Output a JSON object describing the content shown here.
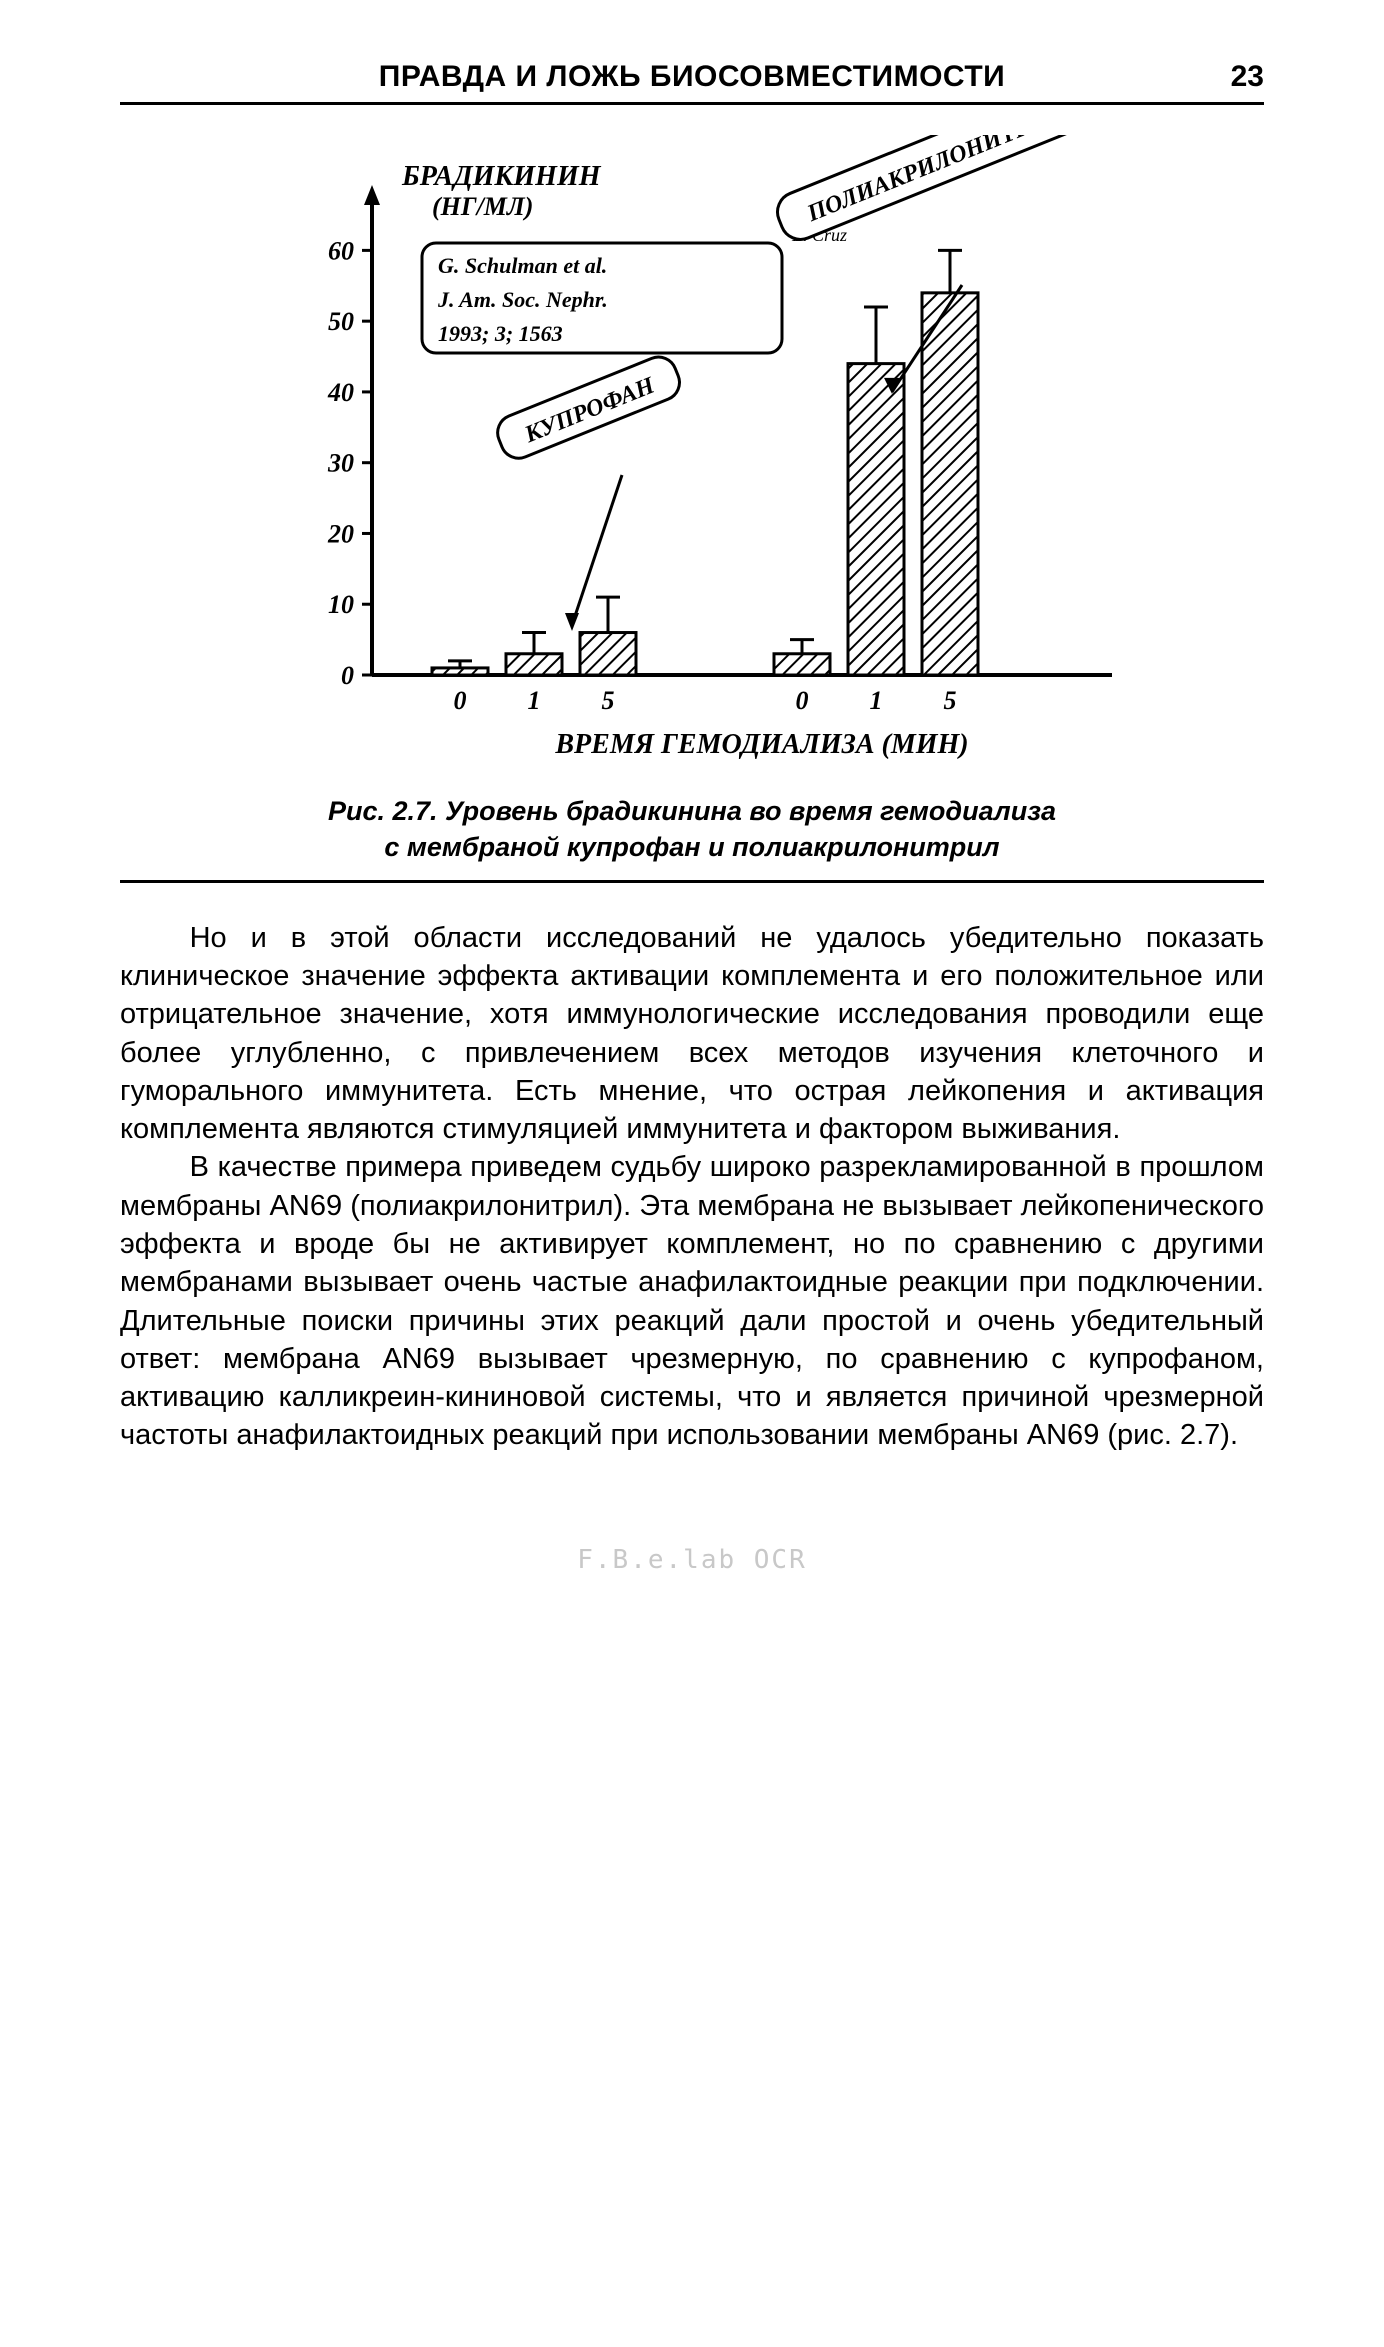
{
  "header": {
    "title": "ПРАВДА И ЛОЖЬ БИОСОВМЕСТИМОСТИ",
    "page_number": "23"
  },
  "chart": {
    "type": "bar",
    "y_axis_label": "БРАДИКИНИН (НГ/МЛ)",
    "x_axis_label": "ВРЕМЯ ГЕМОДИАЛИЗА (МИН)",
    "y_ticks": [
      0,
      10,
      20,
      30,
      40,
      50,
      60
    ],
    "x_tick_labels_group1": [
      "0",
      "1",
      "5"
    ],
    "x_tick_labels_group2": [
      "0",
      "1",
      "5"
    ],
    "group1_label": "КУПРОФАН",
    "group2_label": "ПОЛИАКРИЛОНИТРИЛ",
    "citation_lines": [
      "G. Schulman et al.",
      "J. Am. Soc. Nephr.",
      "1993; 3; 1563"
    ],
    "citation_author_small": "E. Cruz",
    "bars_group1": [
      {
        "value": 1,
        "err": 1
      },
      {
        "value": 3,
        "err": 3
      },
      {
        "value": 6,
        "err": 5
      }
    ],
    "bars_group2": [
      {
        "value": 3,
        "err": 2
      },
      {
        "value": 44,
        "err": 8
      },
      {
        "value": 54,
        "err": 6
      }
    ],
    "bar_fill": "#000000",
    "bar_hatch": true,
    "axis_color": "#000000",
    "background_color": "#ffffff",
    "line_width_axis": 4,
    "ylim": [
      0,
      65
    ],
    "y_axis_fontsize": 26,
    "x_axis_fontsize": 26,
    "label_fontsize": 28,
    "hand_font": "Comic Sans MS"
  },
  "figure_caption": {
    "line1": "Рис. 2.7. Уровень брадикинина во время гемодиализа",
    "line2": "с мембраной купрофан и полиакрилонитрил"
  },
  "paragraphs": [
    "Но и в этой области исследований не удалось убедительно показать клиническое значение эффекта активации комплемента и его положительное или отрицательное значение, хотя иммунологические исследования проводили еще более углубленно, с привлечением всех методов изучения клеточного и гуморального иммунитета. Есть мнение, что острая лейкопения и активация комплемента являются стимуляцией иммунитета и фактором выживания.",
    "В качестве примера приведем судьбу широко разрекламированной в прошлом мембраны AN69 (полиакрилонитрил). Эта мембрана не вызывает лейкопенического эффекта и вроде бы не активирует комплемент, но по сравнению с другими мембранами вызывает очень частые анафилактоидные реакции при подключении. Длительные поиски причины этих реакций дали простой и очень убедительный ответ: мембрана AN69 вызывает чрезмерную, по сравнению с купрофаном, активацию калликреин-кининовой системы, что и является причиной чрезмерной частоты анафилактоидных реакций при использовании мембраны AN69 (рис. 2.7)."
  ],
  "footer_mark": "F.B.e.lab\nOCR"
}
